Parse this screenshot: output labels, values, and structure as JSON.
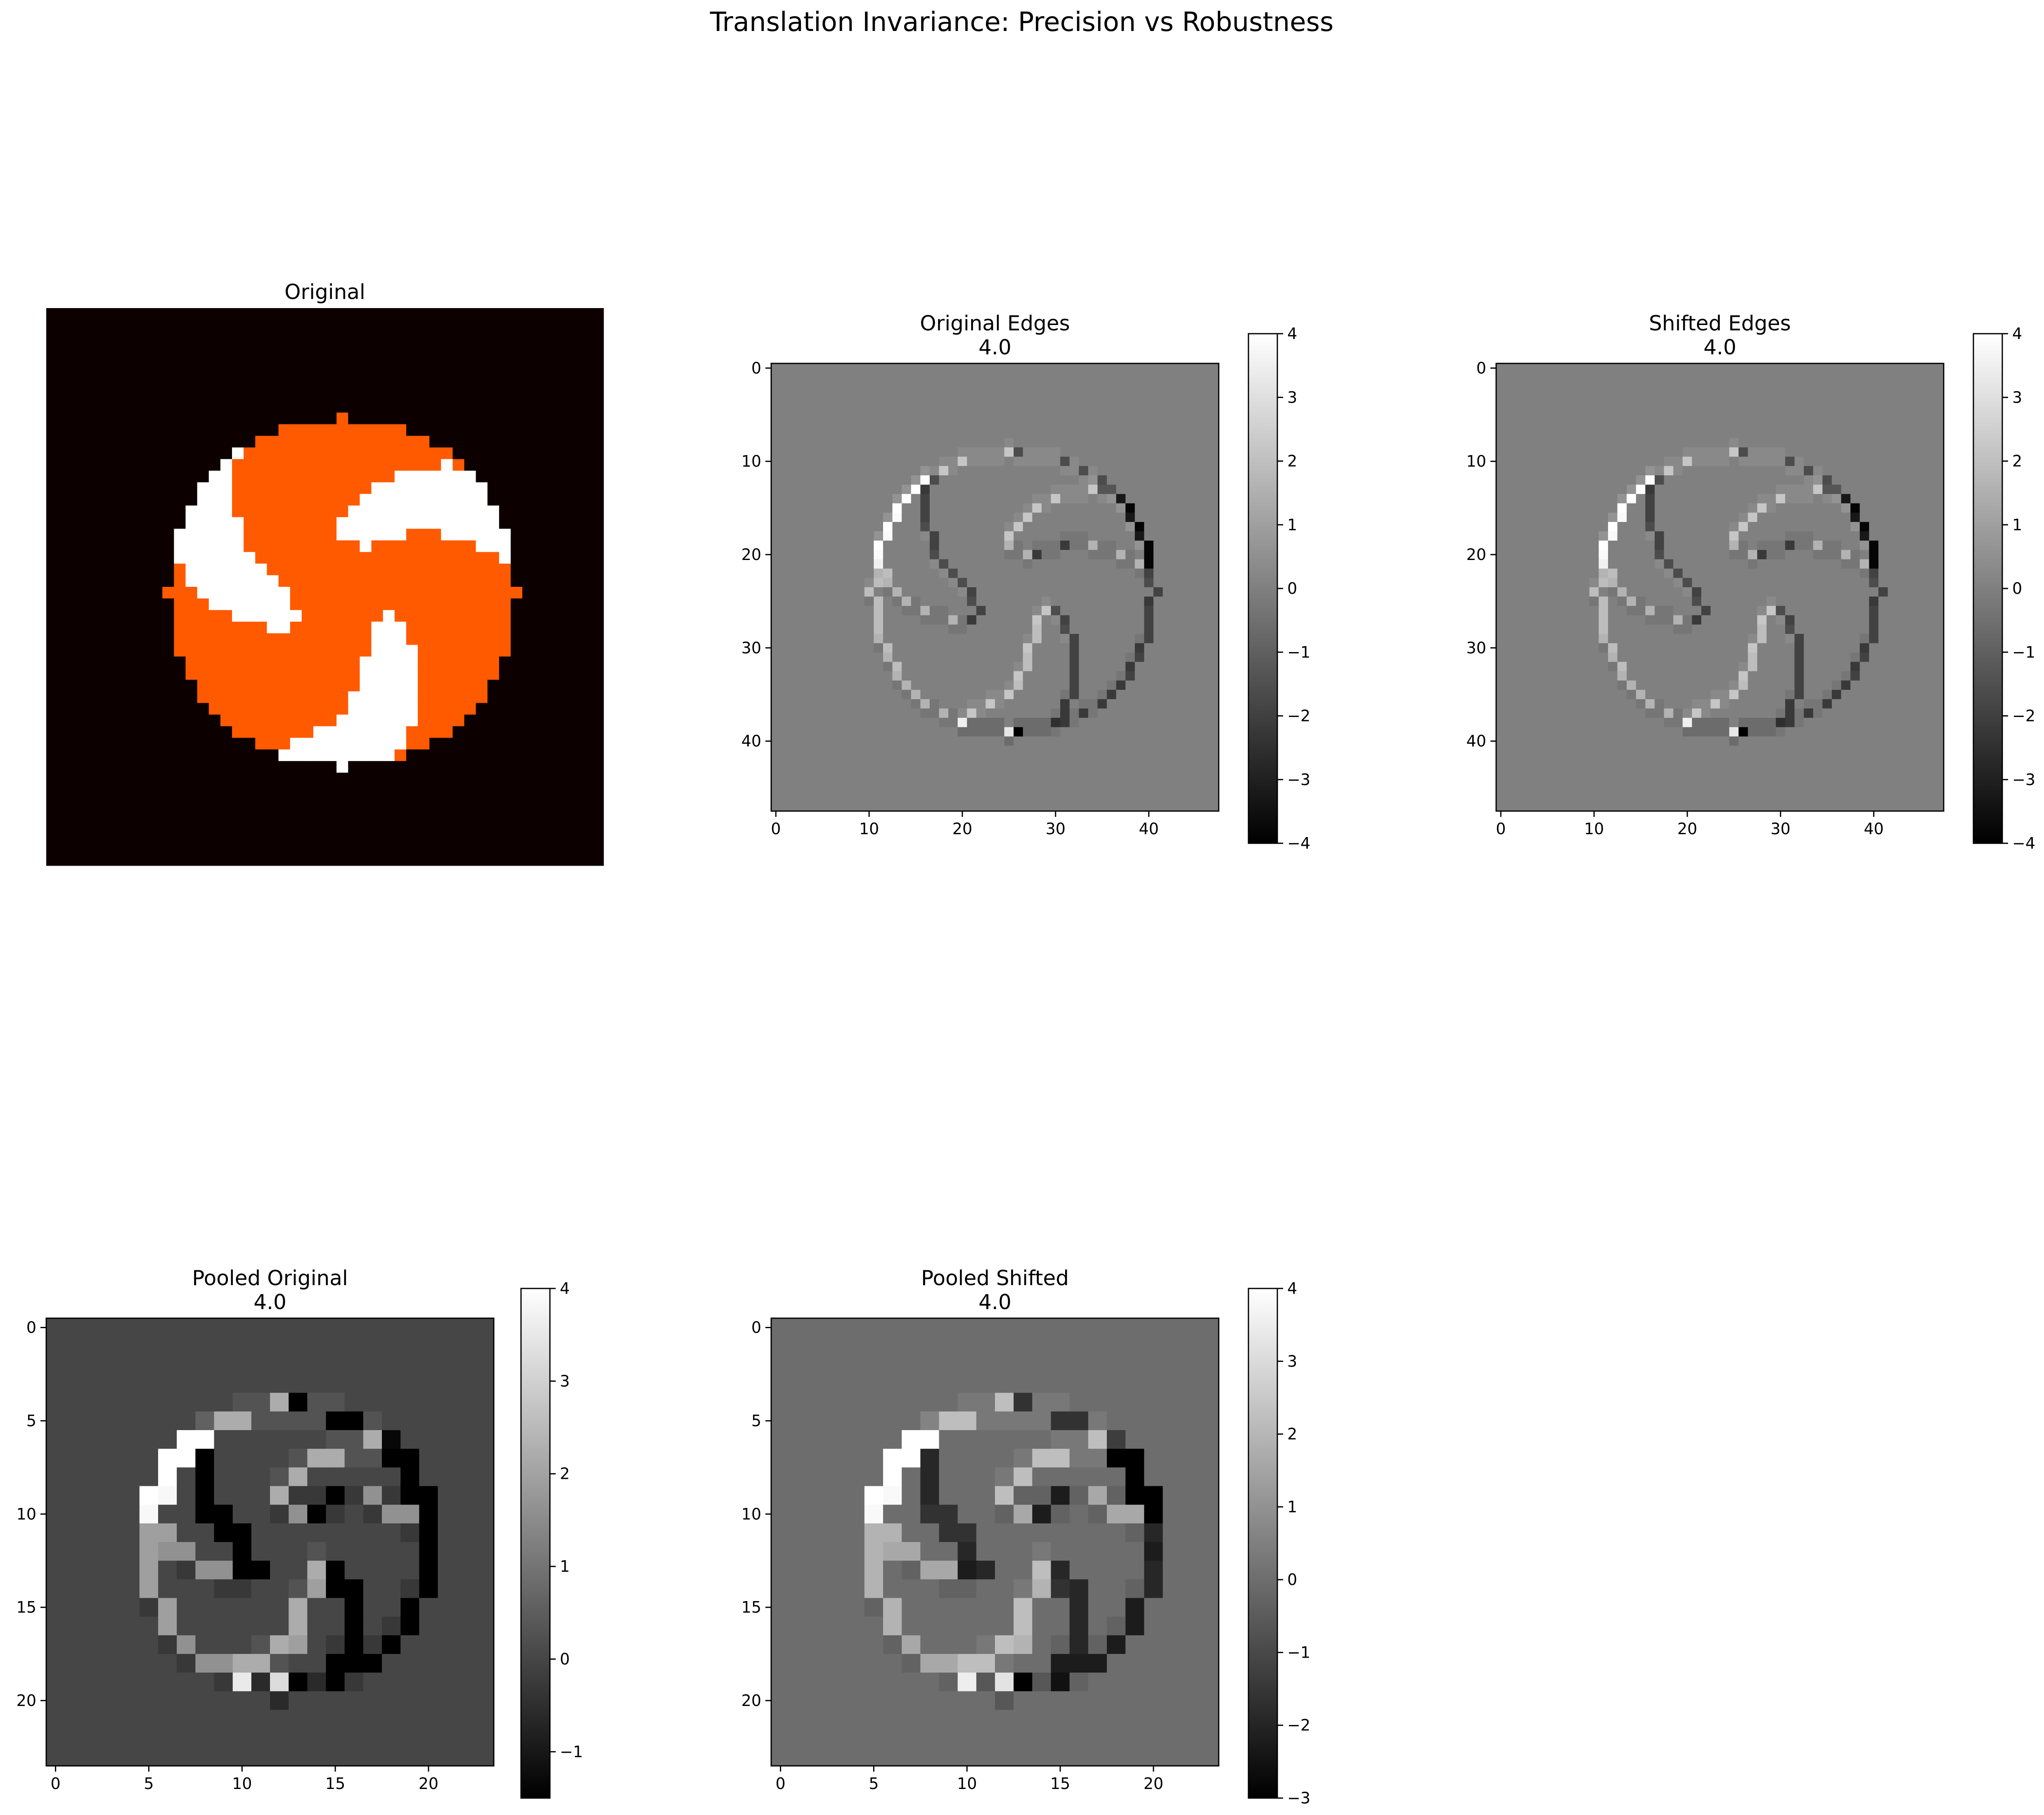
{
  "suptitle": "Translation Invariance: Precision vs Robustness",
  "colors": {
    "background": "#ffffff",
    "original_bg": "#0d0000",
    "original_orange": "#ff5a00",
    "original_white": "#ffffff"
  },
  "chart_data": [
    {
      "type": "heatmap",
      "id": "original",
      "title": "Original",
      "title_lines": [
        "Original"
      ],
      "axes": "off",
      "grid": false,
      "colormap": "hot",
      "size": [
        48,
        48
      ],
      "image": "48x48 pinwheel: black background, orange disk of radius ~15 centred near (25,24) with three white curved blades"
    },
    {
      "type": "heatmap",
      "id": "original-edges",
      "title": "Original Edges\n4.0",
      "title_lines": [
        "Original Edges",
        "4.0"
      ],
      "colormap": "gray",
      "grid": false,
      "xlim": [
        -0.5,
        47.5
      ],
      "ylim": [
        47.5,
        -0.5
      ],
      "xticks": [
        0,
        10,
        20,
        30,
        40
      ],
      "yticks": [
        0,
        10,
        20,
        30,
        40
      ],
      "colorbar": {
        "vmin": -4,
        "vmax": 4,
        "ticks": [
          4,
          3,
          2,
          1,
          0,
          -1,
          -2,
          -3,
          -4
        ],
        "tick_labels": [
          "4",
          "3",
          "2",
          "1",
          "0",
          "−1",
          "−2",
          "−3",
          "−4"
        ]
      },
      "shift": [
        0,
        0
      ]
    },
    {
      "type": "heatmap",
      "id": "shifted-edges",
      "title": "Shifted Edges\n4.0",
      "title_lines": [
        "Shifted Edges",
        "4.0"
      ],
      "colormap": "gray",
      "grid": false,
      "xlim": [
        -0.5,
        47.5
      ],
      "ylim": [
        47.5,
        -0.5
      ],
      "xticks": [
        0,
        10,
        20,
        30,
        40
      ],
      "yticks": [
        0,
        10,
        20,
        30,
        40
      ],
      "colorbar": {
        "vmin": -4,
        "vmax": 4,
        "ticks": [
          4,
          3,
          2,
          1,
          0,
          -1,
          -2,
          -3,
          -4
        ],
        "tick_labels": [
          "4",
          "3",
          "2",
          "1",
          "0",
          "−1",
          "−2",
          "−3",
          "−4"
        ]
      },
      "shift": [
        0,
        0
      ]
    },
    {
      "type": "heatmap",
      "id": "pooled-original",
      "title": "Pooled Original\n4.0",
      "title_lines": [
        "Pooled Original",
        "4.0"
      ],
      "colormap": "gray",
      "grid": false,
      "xlim": [
        -0.5,
        23.5
      ],
      "ylim": [
        23.5,
        -0.5
      ],
      "xticks": [
        0,
        5,
        10,
        15,
        20
      ],
      "yticks": [
        0,
        5,
        10,
        15,
        20
      ],
      "colorbar": {
        "vmin": -1.5,
        "vmax": 4,
        "ticks": [
          4,
          3,
          2,
          1,
          0,
          -1
        ],
        "tick_labels": [
          "4",
          "3",
          "2",
          "1",
          "0",
          "−1"
        ]
      },
      "shift": [
        0,
        0
      ]
    },
    {
      "type": "heatmap",
      "id": "pooled-shifted",
      "title": "Pooled Shifted\n4.0",
      "title_lines": [
        "Pooled Shifted",
        "4.0"
      ],
      "colormap": "gray",
      "grid": false,
      "xlim": [
        -0.5,
        23.5
      ],
      "ylim": [
        23.5,
        -0.5
      ],
      "xticks": [
        0,
        5,
        10,
        15,
        20
      ],
      "yticks": [
        0,
        5,
        10,
        15,
        20
      ],
      "colorbar": {
        "vmin": -3,
        "vmax": 4,
        "ticks": [
          4,
          3,
          2,
          1,
          0,
          -1,
          -2,
          -3
        ],
        "tick_labels": [
          "4",
          "3",
          "2",
          "1",
          "0",
          "−1",
          "−2",
          "−3"
        ]
      },
      "shift": [
        0,
        0
      ]
    }
  ]
}
